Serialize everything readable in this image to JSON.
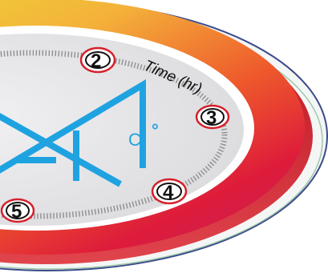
{
  "axis_label": "Time (hr)",
  "hour_markers": [
    "2",
    "3",
    "4",
    "5"
  ],
  "temperature": {
    "value": "4",
    "degree_symbol": "°",
    "unit": "C"
  },
  "colors": {
    "ring_gradient": [
      "#e9e02f",
      "#f2a23a",
      "#ee4b2e",
      "#d91a48",
      "#c9246c"
    ],
    "face": "#e7e7e9",
    "accent_blue": "#1fa3e0",
    "marker_border": "#d6202a",
    "tick": "#8f8f8f",
    "rim": "#3b4b8a"
  },
  "icons": [
    "dial-icon"
  ]
}
